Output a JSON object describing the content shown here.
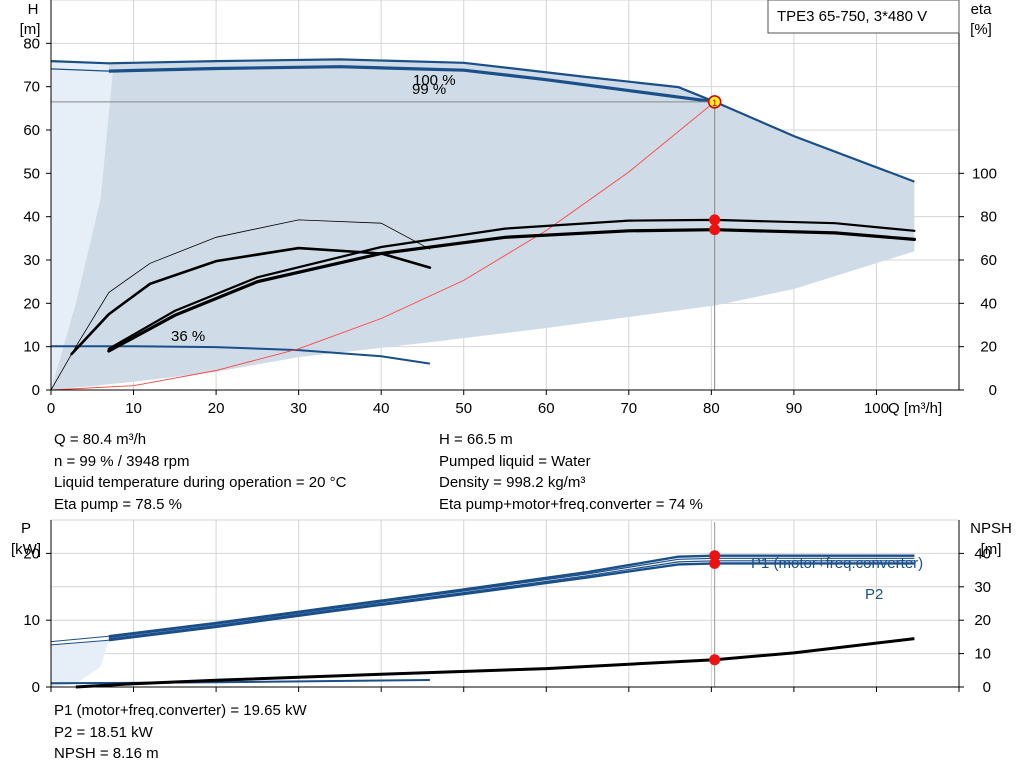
{
  "colors": {
    "curve_blue": "#1a4f8a",
    "band_fill": "#cfdbe6",
    "light_band_fill": "#e6eff8",
    "grid": "#d4d4d4",
    "operating_point": "#ee1111",
    "duty_marker_fill": "#ffee22",
    "system_curve": "#ff4444"
  },
  "title_box": {
    "text": "TPE3 65-750, 3*480 V"
  },
  "chart_data": [
    {
      "id": "head_efficiency",
      "type": "line",
      "x_label": "Q [m³/h]",
      "xlim": [
        0,
        110
      ],
      "x_ticks": [
        "0",
        "10",
        "20",
        "30",
        "40",
        "50",
        "60",
        "70",
        "80",
        "90",
        "100"
      ],
      "y_left": {
        "label_line1": "H",
        "label_line2": "[m]",
        "ylim": [
          0,
          90
        ],
        "ticks": [
          "0",
          "10",
          "20",
          "30",
          "40",
          "50",
          "60",
          "70",
          "80"
        ]
      },
      "y_right": {
        "label_line1": "eta",
        "label_line2": "[%]",
        "ylim": [
          0,
          180
        ],
        "ticks": [
          "0",
          "20",
          "40",
          "60",
          "80",
          "100"
        ]
      },
      "curve_labels": {
        "max_speed": "100 %",
        "operating_speed": "99 %",
        "min_speed": "36 %"
      },
      "duty_point": {
        "q": 80.4,
        "h": 66.5,
        "marker": "1"
      },
      "head_max_speed": [
        [
          0,
          75.9
        ],
        [
          7,
          75.4
        ],
        [
          20,
          75.9
        ],
        [
          35,
          76.3
        ],
        [
          50,
          75.5
        ],
        [
          65,
          72.2
        ],
        [
          76,
          69.9
        ],
        [
          80.4,
          66.5
        ],
        [
          90,
          58.6
        ],
        [
          104.6,
          48.1
        ]
      ],
      "head_operating_speed": [
        [
          7,
          73.6
        ],
        [
          20,
          74.2
        ],
        [
          35,
          74.6
        ],
        [
          50,
          73.8
        ],
        [
          60,
          71.6
        ],
        [
          70,
          69.1
        ],
        [
          80.4,
          66.5
        ]
      ],
      "head_operating_left": [
        [
          0,
          74.1
        ],
        [
          7,
          73.6
        ]
      ],
      "head_min_speed": [
        [
          0,
          10.1
        ],
        [
          10,
          10.1
        ],
        [
          20,
          9.9
        ],
        [
          30,
          9.2
        ],
        [
          40,
          7.8
        ],
        [
          45.9,
          6.1
        ]
      ],
      "band_left_edge": [
        [
          0,
          0
        ],
        [
          3,
          20
        ],
        [
          6,
          44
        ],
        [
          7.5,
          73.6
        ]
      ],
      "band_lower": [
        [
          0,
          0
        ],
        [
          10,
          1.9
        ],
        [
          20,
          4.2
        ],
        [
          30,
          7.6
        ],
        [
          45.9,
          11
        ],
        [
          60,
          14.3
        ],
        [
          80.4,
          19.5
        ],
        [
          90,
          23.3
        ],
        [
          104.6,
          32
        ]
      ],
      "system_curve": [
        [
          0,
          0
        ],
        [
          10,
          1
        ],
        [
          20,
          4.5
        ],
        [
          30,
          9.5
        ],
        [
          40,
          16.5
        ],
        [
          50,
          25.3
        ],
        [
          60,
          36.8
        ],
        [
          70,
          50.3
        ],
        [
          80.4,
          66.5
        ]
      ],
      "eta_series_right_scale": [
        {
          "role": "max_speed_thin",
          "points": [
            [
              0,
              0
            ],
            [
              3,
              20
            ],
            [
              7,
              45
            ],
            [
              12,
              58.5
            ],
            [
              20,
              70.5
            ],
            [
              30,
              78.5
            ],
            [
              40,
              77
            ],
            [
              45.9,
              65
            ]
          ]
        },
        {
          "role": "min_speed_thick",
          "points": [
            [
              2.5,
              16.6
            ],
            [
              7,
              35
            ],
            [
              12,
              49
            ],
            [
              20,
              59.5
            ],
            [
              30,
              65.5
            ],
            [
              40,
              63
            ],
            [
              45.9,
              56.5
            ]
          ]
        },
        {
          "role": "operating_upper",
          "points": [
            [
              7,
              19
            ],
            [
              15,
              36.5
            ],
            [
              25,
              52
            ],
            [
              40,
              66
            ],
            [
              55,
              74.5
            ],
            [
              70,
              78.2
            ],
            [
              80.4,
              78.5
            ],
            [
              95,
              77
            ],
            [
              104.6,
              73.5
            ]
          ]
        },
        {
          "role": "operating_lower",
          "points": [
            [
              7,
              18
            ],
            [
              15,
              34.5
            ],
            [
              25,
              50
            ],
            [
              40,
              63
            ],
            [
              55,
              70.5
            ],
            [
              70,
              73.5
            ],
            [
              80.4,
              74
            ],
            [
              95,
              72.5
            ],
            [
              104.6,
              69.5
            ]
          ]
        }
      ],
      "operating_markers_right_scale": [
        78.5,
        74
      ]
    },
    {
      "id": "power_npsh",
      "type": "line",
      "xlim": [
        0,
        110
      ],
      "y_left": {
        "label_line1": "P",
        "label_line2": "[kW]",
        "ylim": [
          0,
          25
        ],
        "ticks": [
          "0",
          "10",
          "20"
        ]
      },
      "y_right": {
        "label_line1": "NPSH",
        "label_line2": "[m]",
        "ylim": [
          0,
          50
        ],
        "ticks": [
          "0",
          "10",
          "20",
          "30",
          "40"
        ]
      },
      "labels": {
        "p1": "P1 (motor+freq.converter)",
        "p2": "P2"
      },
      "p1_band": [
        [
          0,
          6.8
        ],
        [
          7,
          7.6
        ],
        [
          20,
          9.6
        ],
        [
          35,
          12.1
        ],
        [
          50,
          14.6
        ],
        [
          65,
          17.2
        ],
        [
          76,
          19.5
        ],
        [
          80.4,
          19.65
        ],
        [
          104.6,
          19.65
        ]
      ],
      "p2_band": [
        [
          0,
          6.3
        ],
        [
          7,
          7.0
        ],
        [
          20,
          9.0
        ],
        [
          35,
          11.5
        ],
        [
          50,
          13.9
        ],
        [
          65,
          16.4
        ],
        [
          76,
          18.35
        ],
        [
          80.4,
          18.51
        ],
        [
          104.6,
          18.51
        ]
      ],
      "lower_band": [
        [
          0,
          0.2
        ],
        [
          10,
          0.5
        ],
        [
          30,
          1.2
        ],
        [
          45.9,
          2
        ],
        [
          60,
          3.2
        ],
        [
          80.4,
          5.3
        ],
        [
          95,
          7.6
        ],
        [
          104.6,
          13.5
        ]
      ],
      "p_min_speed": [
        [
          0,
          0.55
        ],
        [
          20,
          0.7
        ],
        [
          45.9,
          1.05
        ]
      ],
      "npsh": [
        [
          3,
          0
        ],
        [
          10,
          1
        ],
        [
          20,
          2
        ],
        [
          40,
          3.8
        ],
        [
          60,
          5.5
        ],
        [
          80.4,
          8.16
        ],
        [
          90,
          10.2
        ],
        [
          104.6,
          14.5
        ]
      ],
      "markers": {
        "p1": 19.65,
        "p2": 18.51,
        "npsh_right_scale": 8.16
      }
    }
  ],
  "info_block_1": {
    "left": [
      "Q = 80.4 m³/h",
      "n = 99 % / 3948 rpm",
      "Liquid temperature during operation = 20 °C",
      "Eta pump = 78.5 %"
    ],
    "right": [
      "H = 66.5 m",
      "Pumped liquid = Water",
      "Density = 998.2 kg/m³",
      "Eta pump+motor+freq.converter = 74 %"
    ]
  },
  "info_block_2": {
    "lines": [
      "P1 (motor+freq.converter) = 19.65 kW",
      "P2 = 18.51 kW",
      "NPSH = 8.16 m"
    ]
  }
}
